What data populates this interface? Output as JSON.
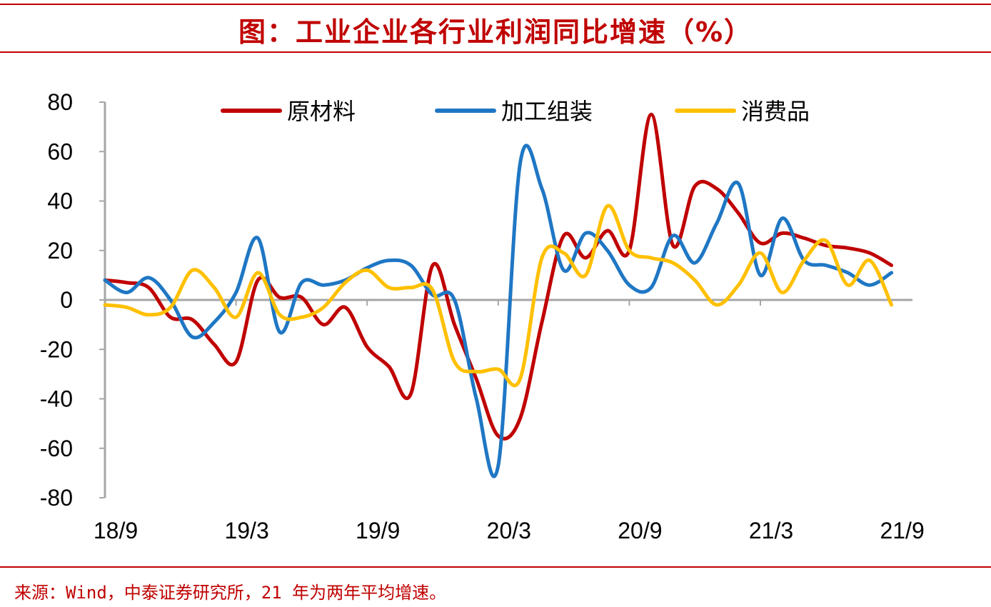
{
  "header": {
    "title": "图：工业企业各行业利润同比增速（%）"
  },
  "footer": {
    "source": "来源：Wind，中泰证券研究所，21 年为两年平均增速。"
  },
  "chart_data": {
    "type": "line",
    "title": "图：工业企业各行业利润同比增速（%）",
    "xlabel": "",
    "ylabel": "",
    "ylim": [
      -80,
      80
    ],
    "yticks": [
      80,
      60,
      40,
      20,
      0,
      -20,
      -40,
      -60,
      -80
    ],
    "x_tick_labels": [
      "18/9",
      "19/3",
      "19/9",
      "20/3",
      "20/9",
      "21/3",
      "21/9"
    ],
    "legend_position": "top",
    "categories": [
      "18/9",
      "18/10",
      "18/11",
      "18/12",
      "19/1",
      "19/2",
      "19/3",
      "19/4",
      "19/5",
      "19/6",
      "19/7",
      "19/8",
      "19/9",
      "19/10",
      "19/11",
      "19/12",
      "20/1",
      "20/2",
      "20/3",
      "20/4",
      "20/5",
      "20/6",
      "20/7",
      "20/8",
      "20/9",
      "20/10",
      "20/11",
      "20/12",
      "21/1",
      "21/2",
      "21/3",
      "21/4",
      "21/5",
      "21/6",
      "21/7",
      "21/8",
      "21/9"
    ],
    "series": [
      {
        "name": "原材料",
        "color": "#c00000",
        "values": [
          8,
          7,
          5,
          -7,
          -8,
          -18,
          -25,
          8,
          1,
          1,
          -10,
          -3,
          -19,
          -27,
          -38,
          14,
          -10,
          -32,
          -55,
          -48,
          -9,
          26,
          17,
          28,
          20,
          75,
          22,
          46,
          45,
          35,
          23,
          27,
          25,
          22,
          21,
          19,
          14
        ]
      },
      {
        "name": "加工组装",
        "color": "#1f77c4",
        "values": [
          8,
          3,
          9,
          0,
          -15,
          -9,
          3,
          25,
          -13,
          7,
          6,
          8,
          13,
          16,
          14,
          2,
          0,
          -40,
          -67,
          55,
          45,
          12,
          27,
          20,
          6,
          5,
          26,
          15,
          31,
          47,
          10,
          33,
          16,
          14,
          11,
          6,
          11
        ]
      },
      {
        "name": "消费品",
        "color": "#ffc000",
        "values": [
          -2,
          -3,
          -6,
          -3,
          12,
          5,
          -7,
          11,
          -6,
          -7,
          -3,
          7,
          12,
          5,
          5,
          4,
          -25,
          -29,
          -28,
          -32,
          17,
          19,
          10,
          38,
          20,
          17,
          15,
          8,
          -2,
          6,
          19,
          3,
          16,
          24,
          6,
          16,
          -2
        ]
      }
    ]
  }
}
